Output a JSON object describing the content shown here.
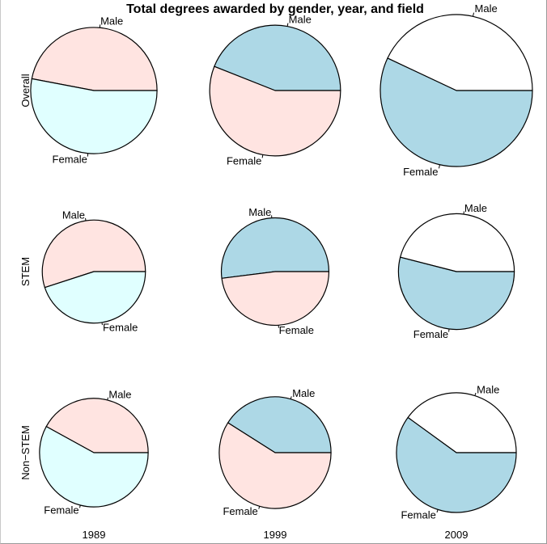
{
  "chart_data": {
    "type": "pie",
    "title": "Total degrees awarded by gender, year, and field",
    "rows": [
      "Overall",
      "STEM",
      "Non−STEM"
    ],
    "columns": [
      "1989",
      "1999",
      "2009"
    ],
    "slice_labels": [
      "Male",
      "Female"
    ],
    "slice_order": "counterclockwise from 0° (right)",
    "year_colors": {
      "1989": {
        "Male": "#ffe4e1",
        "Female": "#e0ffff"
      },
      "1999": {
        "Male": "#add8e6",
        "Female": "#ffe4e1"
      },
      "2009": {
        "Male": "#ffffff",
        "Female": "#add8e6"
      }
    },
    "pies": [
      {
        "row": "Overall",
        "year": "1989",
        "relative_size": 0.69,
        "male_share": 0.47,
        "female_share": 0.53
      },
      {
        "row": "Overall",
        "year": "1999",
        "relative_size": 0.74,
        "male_share": 0.44,
        "female_share": 0.56
      },
      {
        "row": "Overall",
        "year": "2009",
        "relative_size": 1.0,
        "male_share": 0.43,
        "female_share": 0.57
      },
      {
        "row": "STEM",
        "year": "1989",
        "relative_size": 0.46,
        "male_share": 0.55,
        "female_share": 0.45
      },
      {
        "row": "STEM",
        "year": "1999",
        "relative_size": 0.5,
        "male_share": 0.52,
        "female_share": 0.48
      },
      {
        "row": "STEM",
        "year": "2009",
        "relative_size": 0.58,
        "male_share": 0.46,
        "female_share": 0.54
      },
      {
        "row": "Non−STEM",
        "year": "1989",
        "relative_size": 0.51,
        "male_share": 0.42,
        "female_share": 0.58
      },
      {
        "row": "Non−STEM",
        "year": "1999",
        "relative_size": 0.54,
        "male_share": 0.41,
        "female_share": 0.59
      },
      {
        "row": "Non−STEM",
        "year": "2009",
        "relative_size": 0.62,
        "male_share": 0.4,
        "female_share": 0.6
      }
    ]
  }
}
